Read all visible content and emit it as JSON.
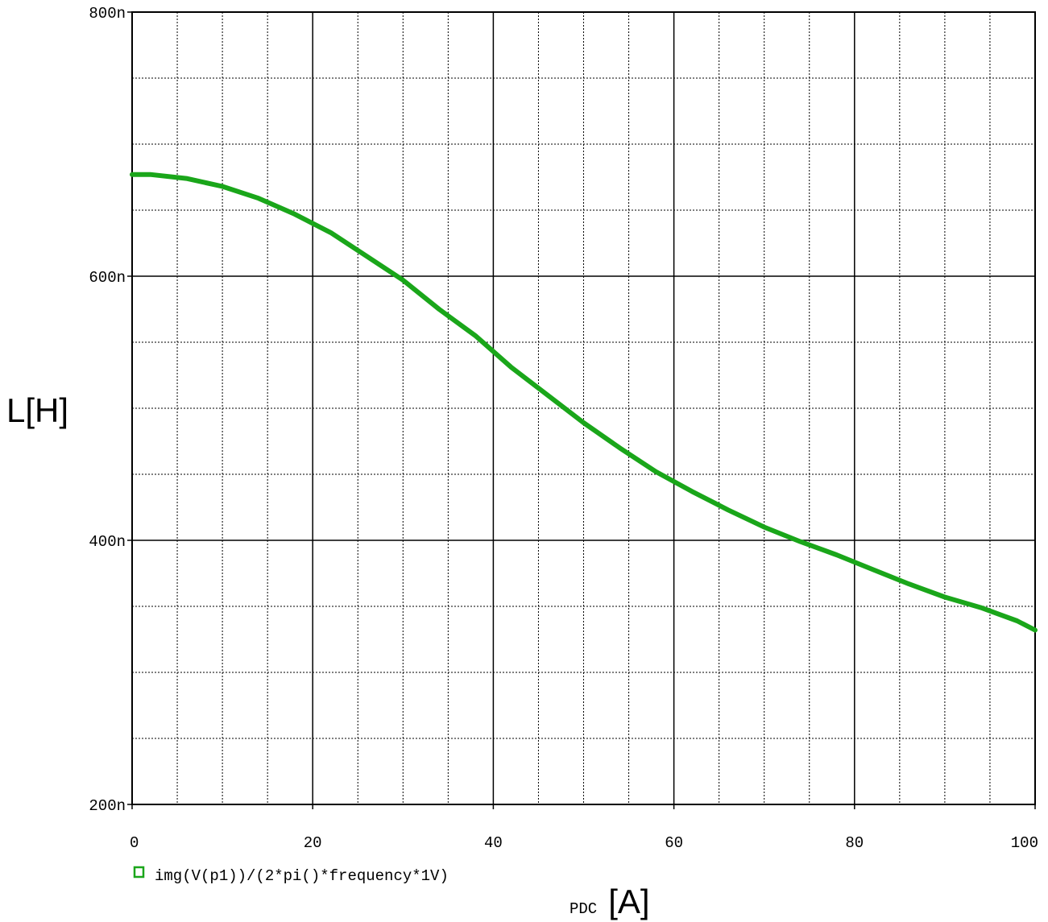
{
  "chart_data": {
    "type": "line",
    "ylabel": "L[H]",
    "xlabel_prefix": "PDC",
    "xlabel_unit": "[A]",
    "xlim": [
      0,
      100
    ],
    "ylim": [
      200,
      800
    ],
    "x_ticks": [
      0,
      20,
      40,
      60,
      80,
      100
    ],
    "x_tick_labels": [
      "0",
      "20",
      "40",
      "60",
      "80",
      "100"
    ],
    "y_ticks": [
      200,
      400,
      600,
      800
    ],
    "y_tick_labels": [
      "200n",
      "400n",
      "600n",
      "800n"
    ],
    "x_minor_step": 5,
    "y_minor_step": 50,
    "grid": true,
    "series": [
      {
        "name": "img(V(p1))/(2*pi()*frequency*1V)",
        "color": "#1aa61a",
        "x": [
          0,
          2,
          6,
          10,
          14,
          18,
          22,
          26,
          30,
          34,
          38,
          42,
          46,
          50,
          54,
          58,
          62,
          66,
          70,
          74,
          78,
          82,
          86,
          90,
          94,
          98,
          100
        ],
        "y": [
          677,
          677,
          674,
          668,
          659,
          647,
          633,
          615,
          597,
          575,
          555,
          531,
          510,
          489,
          470,
          452,
          437,
          423,
          410,
          399,
          389,
          378,
          367,
          357,
          349,
          339,
          332
        ]
      }
    ]
  }
}
